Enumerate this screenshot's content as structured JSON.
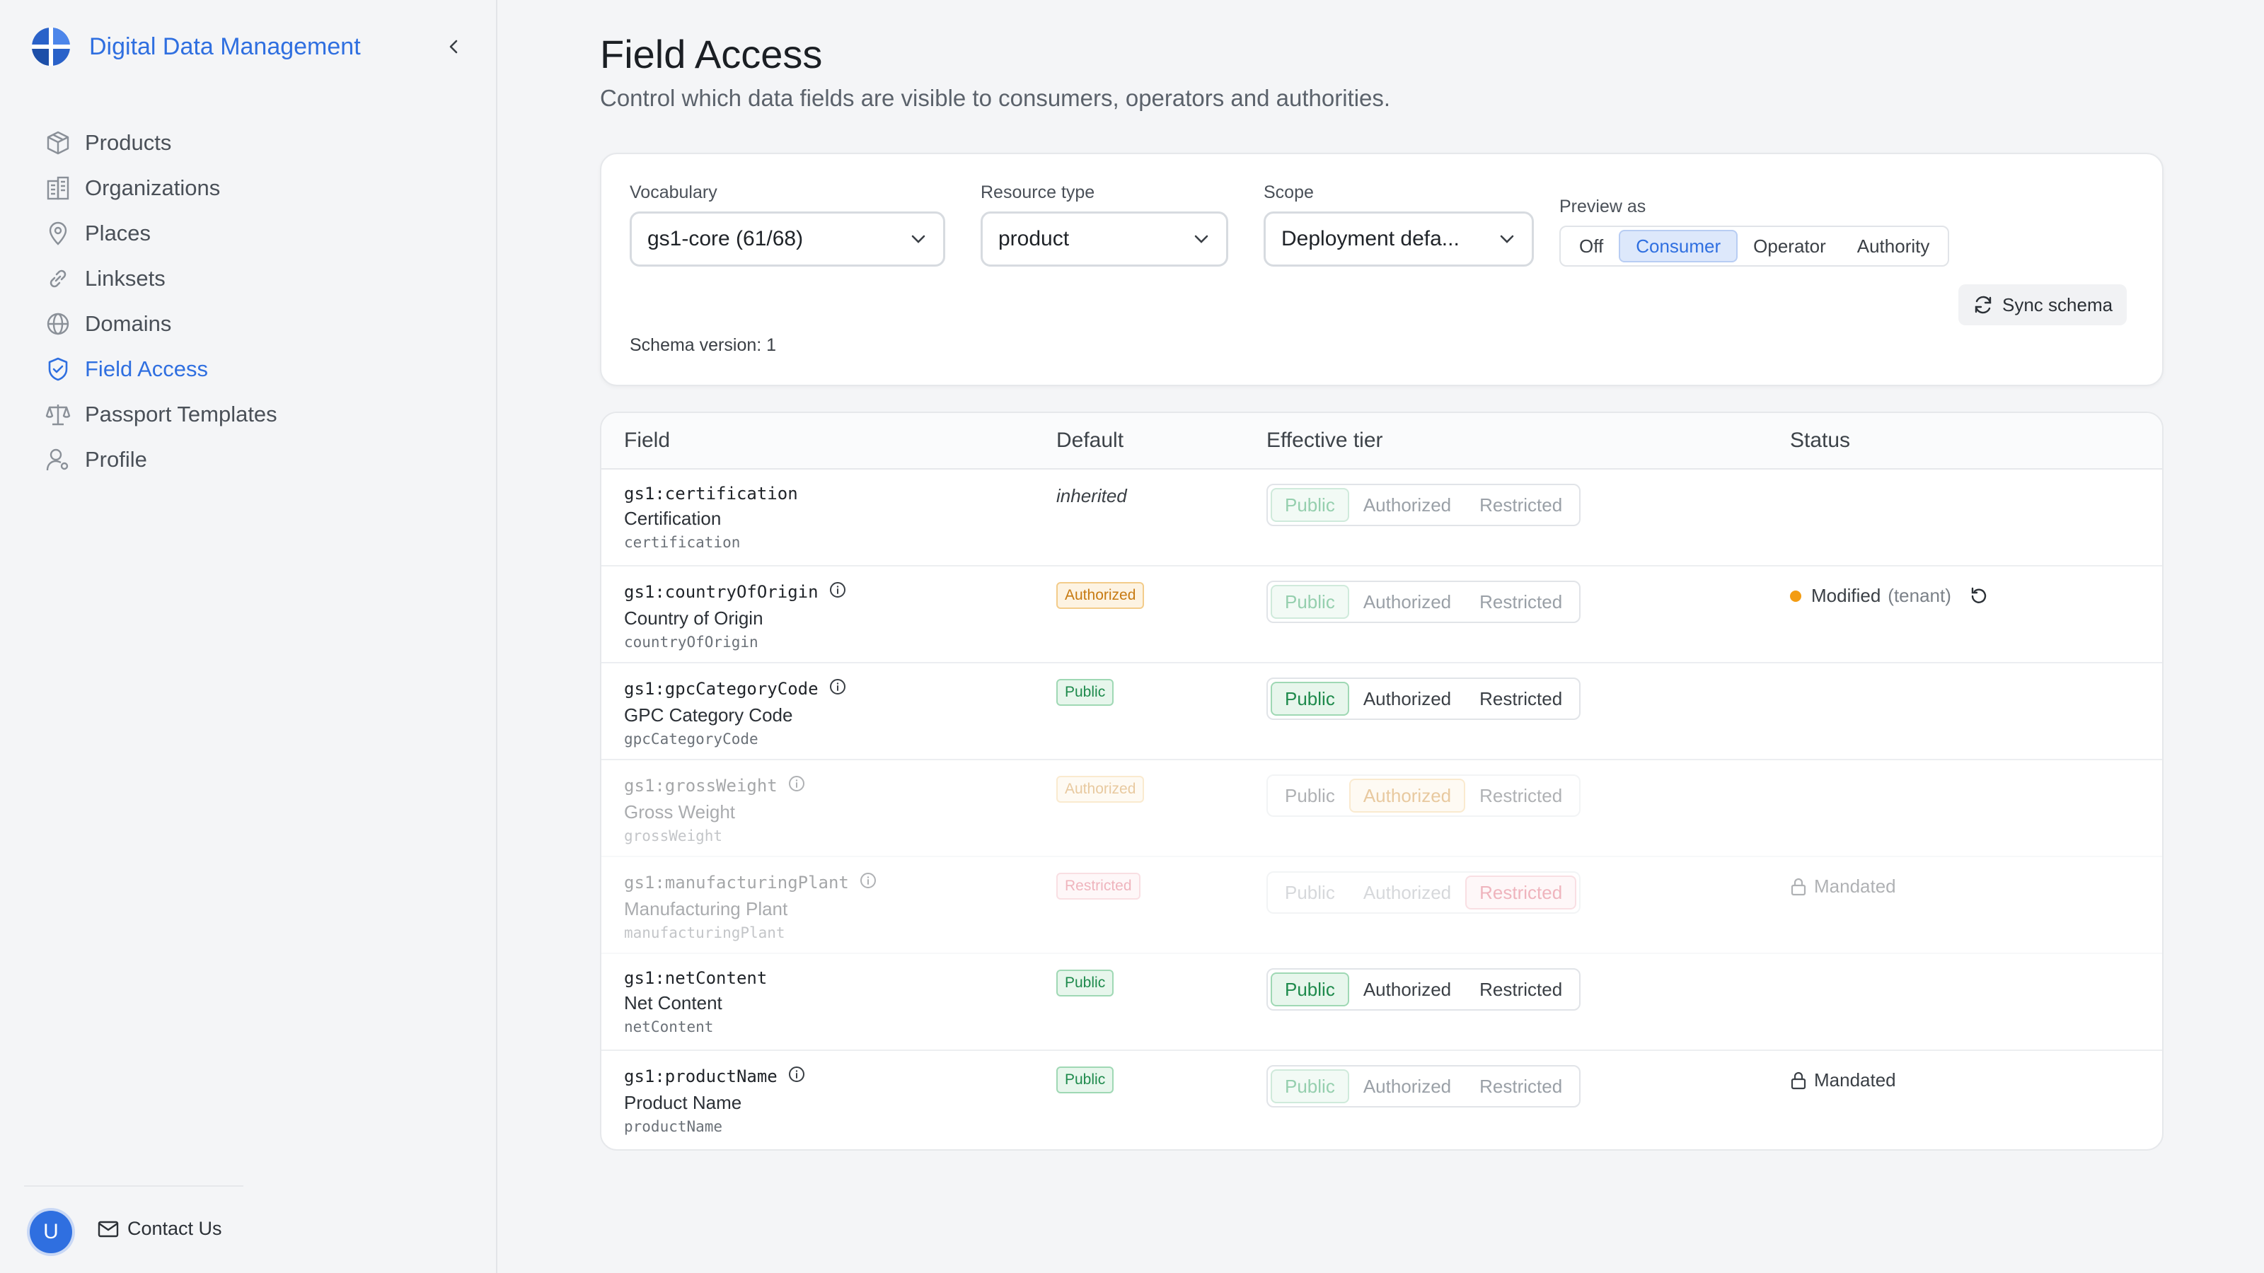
{
  "app": {
    "title": "Digital Data Management",
    "accent": "#2f6fe0"
  },
  "sidebar": {
    "items": [
      {
        "label": "Products",
        "icon": "box-icon"
      },
      {
        "label": "Organizations",
        "icon": "building-icon"
      },
      {
        "label": "Places",
        "icon": "map-pin-icon"
      },
      {
        "label": "Linksets",
        "icon": "link-icon"
      },
      {
        "label": "Domains",
        "icon": "globe-icon"
      },
      {
        "label": "Field Access",
        "icon": "shield-check-icon",
        "active": true
      },
      {
        "label": "Passport Templates",
        "icon": "scale-icon"
      },
      {
        "label": "Profile",
        "icon": "user-gear-icon"
      }
    ],
    "avatar_initial": "U",
    "contact_label": "Contact Us"
  },
  "page": {
    "title": "Field Access",
    "subtitle": "Control which data fields are visible to consumers, operators and authorities."
  },
  "filters": {
    "vocabulary": {
      "label": "Vocabulary",
      "value": "gs1-core (61/68)"
    },
    "resource_type": {
      "label": "Resource type",
      "value": "product"
    },
    "scope": {
      "label": "Scope",
      "value": "Deployment defa..."
    },
    "preview": {
      "label": "Preview as",
      "options": [
        "Off",
        "Consumer",
        "Operator",
        "Authority"
      ],
      "selected": "Consumer"
    },
    "sync_label": "Sync schema",
    "schema_version": "Schema version: 1"
  },
  "table": {
    "headers": {
      "field": "Field",
      "default": "Default",
      "tier": "Effective tier",
      "status": "Status"
    },
    "tier_labels": [
      "Public",
      "Authorized",
      "Restricted"
    ],
    "rows": [
      {
        "id": "gs1:certification",
        "label": "Certification",
        "key": "certification",
        "info": false,
        "default": "inherited",
        "tier": "Public",
        "status": ""
      },
      {
        "id": "gs1:countryOfOrigin",
        "label": "Country of Origin",
        "key": "countryOfOrigin",
        "info": true,
        "default": "Authorized",
        "tier": "Public",
        "status": "Modified",
        "status_detail": "(tenant)"
      },
      {
        "id": "gs1:gpcCategoryCode",
        "label": "GPC Category Code",
        "key": "gpcCategoryCode",
        "info": true,
        "default": "Public",
        "tier": "Public",
        "status": ""
      },
      {
        "id": "gs1:grossWeight",
        "label": "Gross Weight",
        "key": "grossWeight",
        "info": true,
        "default": "Authorized",
        "tier": "Authorized",
        "status": ""
      },
      {
        "id": "gs1:manufacturingPlant",
        "label": "Manufacturing Plant",
        "key": "manufacturingPlant",
        "info": true,
        "default": "Restricted",
        "tier": "Restricted",
        "status": "Mandated"
      },
      {
        "id": "gs1:netContent",
        "label": "Net Content",
        "key": "netContent",
        "info": false,
        "default": "Public",
        "tier": "Public",
        "status": ""
      },
      {
        "id": "gs1:productName",
        "label": "Product Name",
        "key": "productName",
        "info": true,
        "default": "Public",
        "tier": "Public",
        "status": "Mandated"
      }
    ]
  }
}
